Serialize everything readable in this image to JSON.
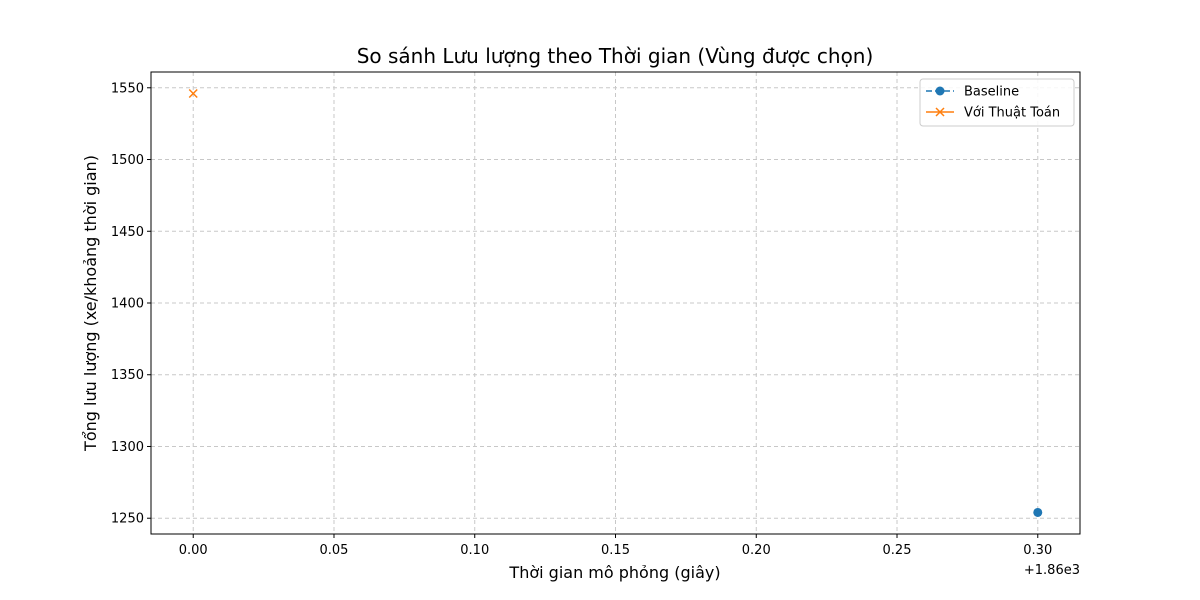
{
  "chart_data": {
    "type": "line",
    "title": "So sánh Lưu lượng theo Thời gian (Vùng được chọn)",
    "xlabel": "Thời gian mô phỏng (giây)",
    "ylabel": "Tổng lưu lượng (xe/khoảng thời gian)",
    "x_offset_label": "+1.86e3",
    "x_offset": 1860,
    "xlim": [
      1859.985,
      1860.315
    ],
    "ylim": [
      1239,
      1561
    ],
    "x_ticks": [
      0.0,
      0.05,
      0.1,
      0.15,
      0.2,
      0.25,
      0.3
    ],
    "x_tick_labels": [
      "0.00",
      "0.05",
      "0.10",
      "0.15",
      "0.20",
      "0.25",
      "0.30"
    ],
    "y_ticks": [
      1250,
      1300,
      1350,
      1400,
      1450,
      1500,
      1550
    ],
    "y_tick_labels": [
      "1250",
      "1300",
      "1350",
      "1400",
      "1450",
      "1500",
      "1550"
    ],
    "grid": true,
    "legend_position": "top-right",
    "series": [
      {
        "name": "Baseline",
        "color": "#1f77b4",
        "marker": "circle",
        "line": "dashed",
        "x": [
          1860.3
        ],
        "y": [
          1254
        ]
      },
      {
        "name": "Với Thuật Toán",
        "color": "#ff7f0e",
        "marker": "x",
        "line": "solid",
        "x": [
          1860.0
        ],
        "y": [
          1546
        ]
      }
    ]
  }
}
